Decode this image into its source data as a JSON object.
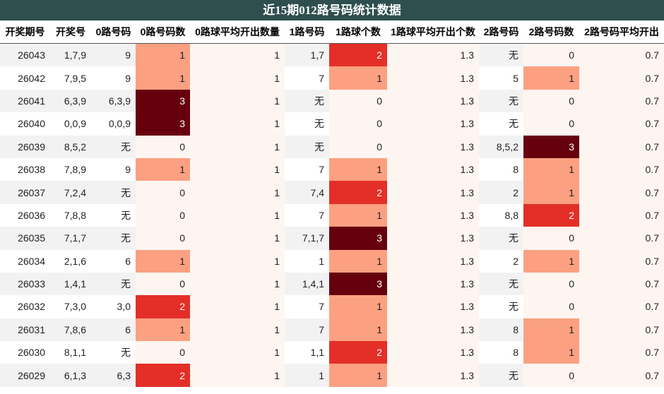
{
  "title": "近15期012路号码统计数据",
  "headers": [
    "开奖期号",
    "开奖号",
    "0路号码",
    "0路号码数",
    "0路球平均开出数量",
    "1路号码",
    "1路球个数",
    "1路球平均开出个数",
    "2路号码",
    "2路号码数",
    "2路号码平均开出"
  ],
  "rows": [
    [
      "26043",
      "1,7,9",
      "9",
      "1",
      "1",
      "1,7",
      "2",
      "1.3",
      "无",
      "0",
      "0.7"
    ],
    [
      "26042",
      "7,9,5",
      "9",
      "1",
      "1",
      "7",
      "1",
      "1.3",
      "5",
      "1",
      "0.7"
    ],
    [
      "26041",
      "6,3,9",
      "6,3,9",
      "3",
      "1",
      "无",
      "0",
      "1.3",
      "无",
      "0",
      "0.7"
    ],
    [
      "26040",
      "0,0,9",
      "0,0,9",
      "3",
      "1",
      "无",
      "0",
      "1.3",
      "无",
      "0",
      "0.7"
    ],
    [
      "26039",
      "8,5,2",
      "无",
      "0",
      "1",
      "无",
      "0",
      "1.3",
      "8,5,2",
      "3",
      "0.7"
    ],
    [
      "26038",
      "7,8,9",
      "9",
      "1",
      "1",
      "7",
      "1",
      "1.3",
      "8",
      "1",
      "0.7"
    ],
    [
      "26037",
      "7,2,4",
      "无",
      "0",
      "1",
      "7,4",
      "2",
      "1.3",
      "2",
      "1",
      "0.7"
    ],
    [
      "26036",
      "7,8,8",
      "无",
      "0",
      "1",
      "7",
      "1",
      "1.3",
      "8,8",
      "2",
      "0.7"
    ],
    [
      "26035",
      "7,1,7",
      "无",
      "0",
      "1",
      "7,1,7",
      "3",
      "1.3",
      "无",
      "0",
      "0.7"
    ],
    [
      "26034",
      "2,1,6",
      "6",
      "1",
      "1",
      "1",
      "1",
      "1.3",
      "2",
      "1",
      "0.7"
    ],
    [
      "26033",
      "1,4,1",
      "无",
      "0",
      "1",
      "1,4,1",
      "3",
      "1.3",
      "无",
      "0",
      "0.7"
    ],
    [
      "26032",
      "7,3,0",
      "3,0",
      "2",
      "1",
      "7",
      "1",
      "1.3",
      "无",
      "0",
      "0.7"
    ],
    [
      "26031",
      "7,8,6",
      "6",
      "1",
      "1",
      "7",
      "1",
      "1.3",
      "8",
      "1",
      "0.7"
    ],
    [
      "26030",
      "8,1,1",
      "无",
      "0",
      "1",
      "1,1",
      "2",
      "1.3",
      "8",
      "1",
      "0.7"
    ],
    [
      "26029",
      "6,1,3",
      "6,3",
      "2",
      "1",
      "1",
      "1",
      "1.3",
      "无",
      "0",
      "0.7"
    ]
  ],
  "colors": {
    "title_bg": "#2f4f4f",
    "scale": [
      "#fff5f0",
      "#fca082",
      "#e32f27",
      "#67000d"
    ]
  }
}
